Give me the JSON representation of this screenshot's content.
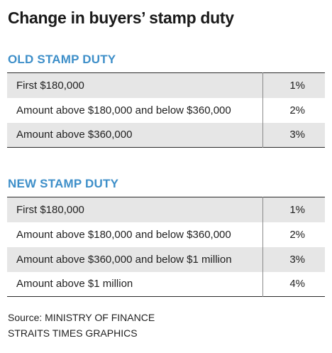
{
  "title": "Change in buyers’ stamp duty",
  "old_section": {
    "heading": "OLD STAMP DUTY",
    "rows": [
      {
        "label": "First $180,000",
        "rate": "1%"
      },
      {
        "label": "Amount above $180,000 and below $360,000",
        "rate": "2%"
      },
      {
        "label": "Amount above $360,000",
        "rate": "3%"
      }
    ]
  },
  "new_section": {
    "heading": "NEW STAMP DUTY",
    "rows": [
      {
        "label": "First $180,000",
        "rate": "1%"
      },
      {
        "label": "Amount above $180,000 and below $360,000",
        "rate": "2%"
      },
      {
        "label": "Amount above $360,000 and below $1 million",
        "rate": "3%"
      },
      {
        "label": "Amount above $1 million",
        "rate": "4%"
      }
    ]
  },
  "footer": {
    "source": "Source: MINISTRY OF FINANCE",
    "credit": "STRAITS TIMES GRAPHICS"
  },
  "colors": {
    "heading_accent": "#3e8fc9",
    "row_shade": "#e6e6e6"
  }
}
